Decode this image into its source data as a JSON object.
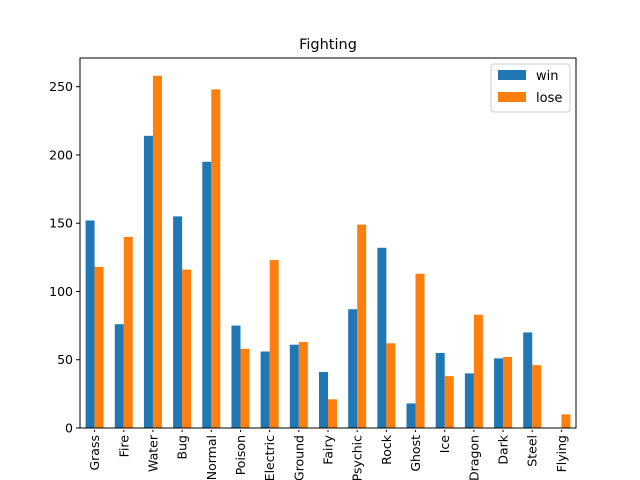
{
  "chart_data": {
    "type": "bar",
    "title": "Fighting",
    "xlabel": "",
    "ylabel": "",
    "ylim": [
      0,
      271
    ],
    "yticks": [
      0,
      50,
      100,
      150,
      200,
      250
    ],
    "legend_position": "top-right",
    "grid": false,
    "categories": [
      "Grass",
      "Fire",
      "Water",
      "Bug",
      "Normal",
      "Poison",
      "Electric",
      "Ground",
      "Fairy",
      "Psychic",
      "Rock",
      "Ghost",
      "Ice",
      "Dragon",
      "Dark",
      "Steel",
      "Flying"
    ],
    "series": [
      {
        "name": "win",
        "color": "#1f77b4",
        "values": [
          152,
          76,
          214,
          155,
          195,
          75,
          56,
          61,
          41,
          87,
          132,
          18,
          55,
          40,
          51,
          70,
          0
        ]
      },
      {
        "name": "lose",
        "color": "#ff7f0e",
        "values": [
          118,
          140,
          258,
          116,
          248,
          58,
          123,
          63,
          21,
          149,
          62,
          113,
          38,
          83,
          52,
          46,
          10
        ]
      }
    ]
  }
}
